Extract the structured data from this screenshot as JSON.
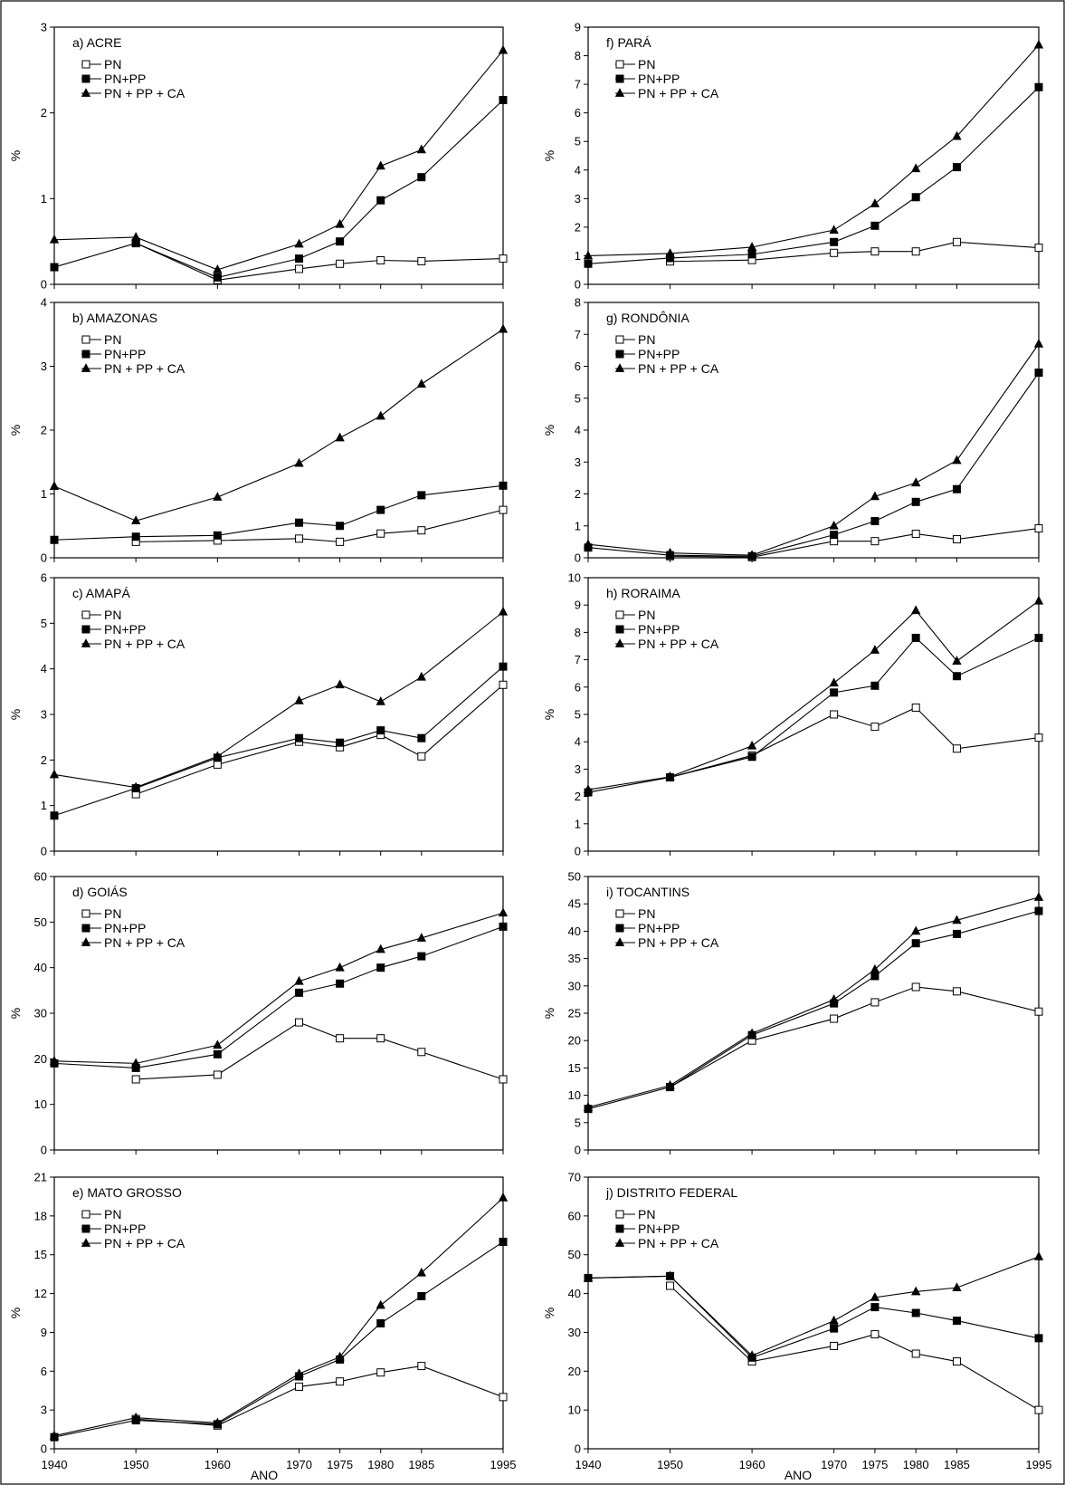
{
  "figure": {
    "xlabel": "ANO",
    "ylabel": "%"
  },
  "legend_series": [
    "PN",
    "PN+PP",
    "PN + PP + CA"
  ],
  "chart_data": [
    {
      "type": "line",
      "title": "a) ACRE",
      "x": [
        1940,
        1950,
        1960,
        1970,
        1975,
        1980,
        1985,
        1995
      ],
      "xticks": [
        1940,
        1950,
        1960,
        1970,
        1975,
        1980,
        1985,
        1995
      ],
      "ylim": [
        0,
        3
      ],
      "yticks": [
        0,
        1,
        2,
        3
      ],
      "xlabel": "",
      "ylabel": "%",
      "series": [
        {
          "name": "PN",
          "marker": "open-square",
          "values": [
            null,
            0.48,
            0.05,
            0.18,
            0.24,
            0.28,
            0.27,
            0.3
          ]
        },
        {
          "name": "PN+PP",
          "marker": "filled-square",
          "values": [
            0.2,
            0.48,
            0.08,
            0.3,
            0.5,
            0.98,
            1.25,
            2.15
          ]
        },
        {
          "name": "PN + PP + CA",
          "marker": "filled-triangle",
          "values": [
            0.52,
            0.55,
            0.17,
            0.47,
            0.7,
            1.38,
            1.57,
            2.73
          ]
        }
      ]
    },
    {
      "type": "line",
      "title": "b) AMAZONAS",
      "x": [
        1940,
        1950,
        1960,
        1970,
        1975,
        1980,
        1985,
        1995
      ],
      "xticks": [
        1940,
        1950,
        1960,
        1970,
        1975,
        1980,
        1985,
        1995
      ],
      "ylim": [
        0,
        4
      ],
      "yticks": [
        0,
        1,
        2,
        3,
        4
      ],
      "xlabel": "",
      "ylabel": "%",
      "series": [
        {
          "name": "PN",
          "marker": "open-square",
          "values": [
            null,
            0.25,
            0.27,
            0.3,
            0.25,
            0.38,
            0.43,
            0.75
          ]
        },
        {
          "name": "PN+PP",
          "marker": "filled-square",
          "values": [
            0.28,
            0.33,
            0.35,
            0.55,
            0.5,
            0.75,
            0.98,
            1.13
          ]
        },
        {
          "name": "PN + PP + CA",
          "marker": "filled-triangle",
          "values": [
            1.12,
            0.58,
            0.95,
            1.48,
            1.88,
            2.22,
            2.72,
            3.58
          ]
        }
      ]
    },
    {
      "type": "line",
      "title": "c) AMAPÁ",
      "x": [
        1940,
        1950,
        1960,
        1970,
        1975,
        1980,
        1985,
        1995
      ],
      "xticks": [
        1940,
        1950,
        1960,
        1970,
        1975,
        1980,
        1985,
        1995
      ],
      "ylim": [
        0,
        6
      ],
      "yticks": [
        0,
        1,
        2,
        3,
        4,
        5,
        6
      ],
      "xlabel": "",
      "ylabel": "%",
      "series": [
        {
          "name": "PN",
          "marker": "open-square",
          "values": [
            null,
            1.25,
            1.9,
            2.4,
            2.28,
            2.55,
            2.08,
            3.65
          ]
        },
        {
          "name": "PN+PP",
          "marker": "filled-square",
          "values": [
            0.78,
            1.38,
            2.05,
            2.48,
            2.38,
            2.65,
            2.48,
            4.05
          ]
        },
        {
          "name": "PN + PP + CA",
          "marker": "filled-triangle",
          "values": [
            1.68,
            1.4,
            2.08,
            3.3,
            3.65,
            3.28,
            3.82,
            5.25
          ]
        }
      ]
    },
    {
      "type": "line",
      "title": "d) GOIÁS",
      "x": [
        1940,
        1950,
        1960,
        1970,
        1975,
        1980,
        1985,
        1995
      ],
      "xticks": [
        1940,
        1950,
        1960,
        1970,
        1975,
        1980,
        1985,
        1995
      ],
      "ylim": [
        0,
        60
      ],
      "yticks": [
        0,
        10,
        20,
        30,
        40,
        50,
        60
      ],
      "xlabel": "",
      "ylabel": "%",
      "series": [
        {
          "name": "PN",
          "marker": "open-square",
          "values": [
            null,
            15.5,
            16.5,
            28,
            24.5,
            24.5,
            21.5,
            15.5
          ]
        },
        {
          "name": "PN+PP",
          "marker": "filled-square",
          "values": [
            19,
            18,
            21,
            34.5,
            36.5,
            40,
            42.5,
            49
          ]
        },
        {
          "name": "PN + PP + CA",
          "marker": "filled-triangle",
          "values": [
            19.5,
            19,
            23,
            37,
            40,
            44,
            46.5,
            52
          ]
        }
      ]
    },
    {
      "type": "line",
      "title": "e) MATO GROSSO",
      "x": [
        1940,
        1950,
        1960,
        1970,
        1975,
        1980,
        1985,
        1995
      ],
      "xticks": [
        1940,
        1950,
        1960,
        1970,
        1975,
        1980,
        1985,
        1995
      ],
      "ylim": [
        0,
        21
      ],
      "yticks": [
        0,
        3,
        6,
        9,
        12,
        15,
        18,
        21
      ],
      "xlabel": "ANO",
      "ylabel": "%",
      "series": [
        {
          "name": "PN",
          "marker": "open-square",
          "values": [
            null,
            2.3,
            1.8,
            4.8,
            5.2,
            5.9,
            6.4,
            4.0
          ]
        },
        {
          "name": "PN+PP",
          "marker": "filled-square",
          "values": [
            0.9,
            2.2,
            1.9,
            5.6,
            6.9,
            9.7,
            11.8,
            16.0
          ]
        },
        {
          "name": "PN + PP + CA",
          "marker": "filled-triangle",
          "values": [
            1.0,
            2.4,
            2.0,
            5.8,
            7.1,
            11.1,
            13.6,
            19.4
          ]
        }
      ]
    },
    {
      "type": "line",
      "title": "f) PARÁ",
      "x": [
        1940,
        1950,
        1960,
        1970,
        1975,
        1980,
        1985,
        1995
      ],
      "xticks": [
        1940,
        1950,
        1960,
        1970,
        1975,
        1980,
        1985,
        1995
      ],
      "ylim": [
        0,
        9
      ],
      "yticks": [
        0,
        1,
        2,
        3,
        4,
        5,
        6,
        7,
        8,
        9
      ],
      "xlabel": "",
      "ylabel": "%",
      "series": [
        {
          "name": "PN",
          "marker": "open-square",
          "values": [
            null,
            0.8,
            0.85,
            1.1,
            1.15,
            1.15,
            1.48,
            1.28
          ]
        },
        {
          "name": "PN+PP",
          "marker": "filled-square",
          "values": [
            0.72,
            0.92,
            1.05,
            1.48,
            2.05,
            3.05,
            4.1,
            6.9
          ]
        },
        {
          "name": "PN + PP + CA",
          "marker": "filled-triangle",
          "values": [
            1.0,
            1.08,
            1.3,
            1.9,
            2.82,
            4.05,
            5.18,
            8.38
          ]
        }
      ]
    },
    {
      "type": "line",
      "title": "g) RONDÔNIA",
      "x": [
        1940,
        1950,
        1960,
        1970,
        1975,
        1980,
        1985,
        1995
      ],
      "xticks": [
        1940,
        1950,
        1960,
        1970,
        1975,
        1980,
        1985,
        1995
      ],
      "ylim": [
        0,
        8
      ],
      "yticks": [
        0,
        1,
        2,
        3,
        4,
        5,
        6,
        7,
        8
      ],
      "xlabel": "",
      "ylabel": "%",
      "series": [
        {
          "name": "PN",
          "marker": "open-square",
          "values": [
            null,
            0.05,
            0.02,
            0.52,
            0.52,
            0.75,
            0.58,
            0.92
          ]
        },
        {
          "name": "PN+PP",
          "marker": "filled-square",
          "values": [
            0.32,
            0.08,
            0.05,
            0.72,
            1.15,
            1.75,
            2.15,
            5.8
          ]
        },
        {
          "name": "PN + PP + CA",
          "marker": "filled-triangle",
          "values": [
            0.42,
            0.15,
            0.08,
            1.0,
            1.92,
            2.35,
            3.05,
            6.7
          ]
        }
      ]
    },
    {
      "type": "line",
      "title": "h) RORAIMA",
      "x": [
        1940,
        1950,
        1960,
        1970,
        1975,
        1980,
        1985,
        1995
      ],
      "xticks": [
        1940,
        1950,
        1960,
        1970,
        1975,
        1980,
        1985,
        1995
      ],
      "ylim": [
        0,
        10
      ],
      "yticks": [
        0,
        1,
        2,
        3,
        4,
        5,
        6,
        7,
        8,
        9,
        10
      ],
      "xlabel": "",
      "ylabel": "%",
      "series": [
        {
          "name": "PN",
          "marker": "open-square",
          "values": [
            null,
            2.7,
            3.5,
            5.0,
            4.55,
            5.25,
            3.75,
            4.15
          ]
        },
        {
          "name": "PN+PP",
          "marker": "filled-square",
          "values": [
            2.15,
            2.7,
            3.45,
            5.8,
            6.05,
            7.8,
            6.4,
            7.8
          ]
        },
        {
          "name": "PN + PP + CA",
          "marker": "filled-triangle",
          "values": [
            2.25,
            2.72,
            3.85,
            6.15,
            7.35,
            8.8,
            6.95,
            9.15
          ]
        }
      ]
    },
    {
      "type": "line",
      "title": "i) TOCANTINS",
      "x": [
        1940,
        1950,
        1960,
        1970,
        1975,
        1980,
        1985,
        1995
      ],
      "xticks": [
        1940,
        1950,
        1960,
        1970,
        1975,
        1980,
        1985,
        1995
      ],
      "ylim": [
        0,
        50
      ],
      "yticks": [
        0,
        5,
        10,
        15,
        20,
        25,
        30,
        35,
        40,
        45,
        50
      ],
      "xlabel": "",
      "ylabel": "%",
      "series": [
        {
          "name": "PN",
          "marker": "open-square",
          "values": [
            null,
            11.5,
            20,
            24,
            27,
            29.8,
            29,
            25.3
          ]
        },
        {
          "name": "PN+PP",
          "marker": "filled-square",
          "values": [
            7.5,
            11.5,
            21,
            26.8,
            31.8,
            37.8,
            39.5,
            43.7
          ]
        },
        {
          "name": "PN + PP + CA",
          "marker": "filled-triangle",
          "values": [
            7.8,
            11.8,
            21.3,
            27.5,
            33,
            40,
            42,
            46.2
          ]
        }
      ]
    },
    {
      "type": "line",
      "title": "j) DISTRITO FEDERAL",
      "x": [
        1940,
        1950,
        1960,
        1970,
        1975,
        1980,
        1985,
        1995
      ],
      "xticks": [
        1940,
        1950,
        1960,
        1970,
        1975,
        1980,
        1985,
        1995
      ],
      "ylim": [
        0,
        70
      ],
      "yticks": [
        0,
        10,
        20,
        30,
        40,
        50,
        60,
        70
      ],
      "xlabel": "ANO",
      "ylabel": "%",
      "series": [
        {
          "name": "PN",
          "marker": "open-square",
          "values": [
            null,
            42,
            22.5,
            26.5,
            29.5,
            24.5,
            22.5,
            10
          ]
        },
        {
          "name": "PN+PP",
          "marker": "filled-square",
          "values": [
            44,
            44.5,
            23.5,
            31,
            36.5,
            35,
            33,
            28.5
          ]
        },
        {
          "name": "PN + PP + CA",
          "marker": "filled-triangle",
          "values": [
            44,
            44.5,
            24,
            33,
            39,
            40.5,
            41.5,
            49.5
          ]
        }
      ]
    }
  ]
}
